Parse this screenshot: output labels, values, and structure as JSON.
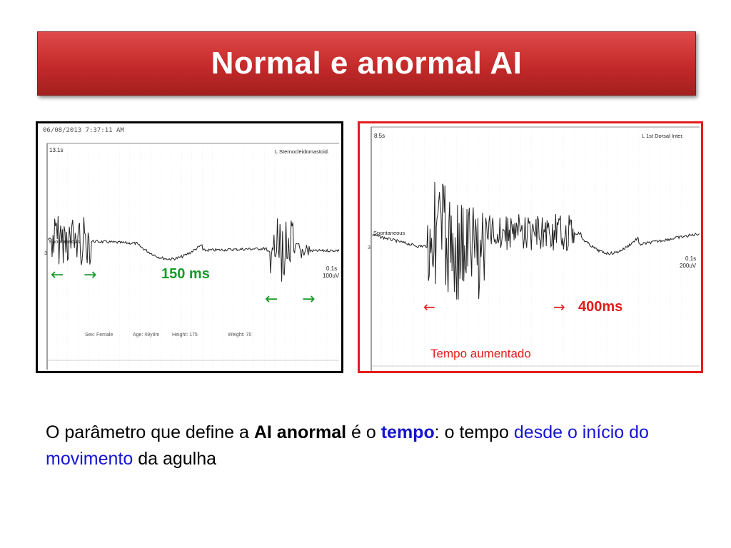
{
  "title": "Normal e anormal AI",
  "left_panel": {
    "timestamp": "06/08/2013 7:37:11 AM",
    "sweep": "13.1s",
    "muscle": "L Sternocleidomastoid.",
    "trace_label": "Spontaneous",
    "scale_time": "0.1s",
    "scale_amp": "100uV",
    "marker_3": "3",
    "patient_sex": "Sex: Female",
    "patient_age": "Age: 49y9m",
    "patient_height": "Height: 175",
    "patient_weight": "Weight: 70",
    "arrow_left_1": "←",
    "arrow_right_1": "→",
    "arrow_left_2": "←",
    "arrow_right_2": "→",
    "duration_label": "150 ms"
  },
  "right_panel": {
    "sweep": "8.5s",
    "muscle": "L 1st Dorsal Inter.",
    "trace_label": "Spontaneous",
    "scale_time": "0.1s",
    "scale_amp": "200uV",
    "marker_3": "3",
    "arrow_left": "←",
    "arrow_right": "→",
    "duration_label": "400ms",
    "caption": "Tempo aumentado"
  },
  "body": {
    "t1": "O parâmetro que define a ",
    "t2": "AI anormal",
    "t3": " é o ",
    "t4": "tempo",
    "t5": ": o tempo ",
    "t6": "desde o início do movimento",
    "t7": " da agulha"
  },
  "colors": {
    "title_red": "#c42a2a",
    "green": "#1a9a2a",
    "red": "#e31b1b",
    "blue": "#1414d0"
  }
}
